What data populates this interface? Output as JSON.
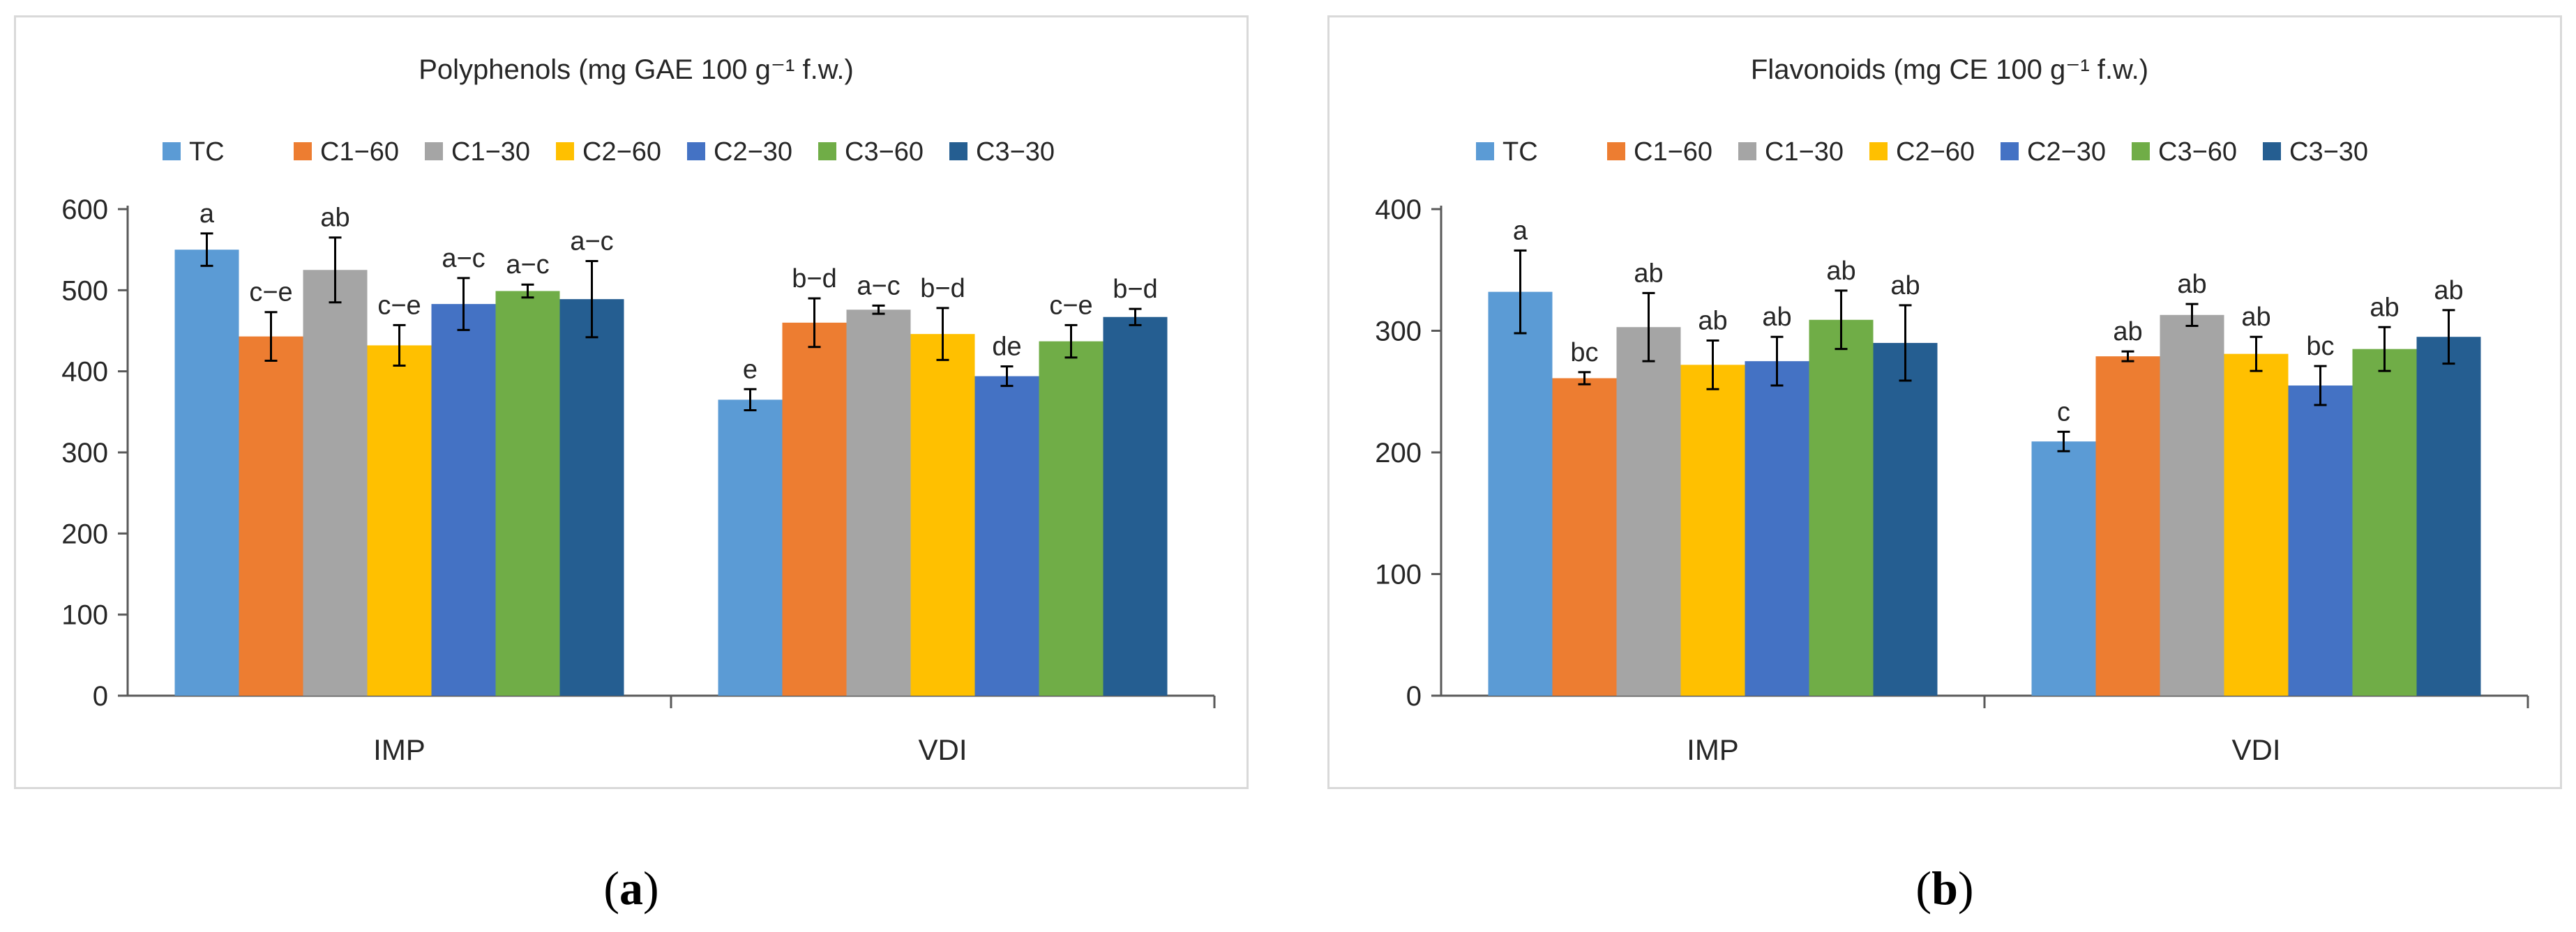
{
  "chart_data": [
    {
      "type": "bar",
      "title": "Polyphenols (mg GAE 100 g⁻¹ f.w.)",
      "categories": [
        "IMP",
        "VDI"
      ],
      "xlabel": "",
      "ylabel": "",
      "ylim": [
        0,
        600
      ],
      "yticks": [
        0,
        100,
        200,
        300,
        400,
        500,
        600
      ],
      "legend_position": "top",
      "series": [
        {
          "name": "TC",
          "color": "#5b9bd5",
          "values": [
            550,
            365
          ],
          "errors": [
            20,
            13
          ],
          "letters": [
            "a",
            "e"
          ]
        },
        {
          "name": "C1−60",
          "color": "#ed7d31",
          "values": [
            443,
            460
          ],
          "errors": [
            30,
            30
          ],
          "letters": [
            "c−e",
            "b−d"
          ]
        },
        {
          "name": "C1−30",
          "color": "#a5a5a5",
          "values": [
            525,
            476
          ],
          "errors": [
            40,
            5
          ],
          "letters": [
            "ab",
            "a−c"
          ]
        },
        {
          "name": "C2−60",
          "color": "#ffc000",
          "values": [
            432,
            446
          ],
          "errors": [
            25,
            32
          ],
          "letters": [
            "c−e",
            "b−d"
          ]
        },
        {
          "name": "C2−30",
          "color": "#4472c4",
          "values": [
            483,
            394
          ],
          "errors": [
            32,
            12
          ],
          "letters": [
            "a−c",
            "de"
          ]
        },
        {
          "name": "C3−60",
          "color": "#70ad47",
          "values": [
            499,
            437
          ],
          "errors": [
            8,
            20
          ],
          "letters": [
            "a−c",
            "c−e"
          ]
        },
        {
          "name": "C3−30",
          "color": "#255e91",
          "values": [
            489,
            467
          ],
          "errors": [
            47,
            10
          ],
          "letters": [
            "a−c",
            "b−d"
          ]
        }
      ]
    },
    {
      "type": "bar",
      "title": "Flavonoids (mg CE 100 g⁻¹ f.w.)",
      "categories": [
        "IMP",
        "VDI"
      ],
      "xlabel": "",
      "ylabel": "",
      "ylim": [
        0,
        400
      ],
      "yticks": [
        0,
        100,
        200,
        300,
        400
      ],
      "legend_position": "top",
      "series": [
        {
          "name": "TC",
          "color": "#5b9bd5",
          "values": [
            332,
            209
          ],
          "errors": [
            34,
            8
          ],
          "letters": [
            "a",
            "c"
          ]
        },
        {
          "name": "C1−60",
          "color": "#ed7d31",
          "values": [
            261,
            279
          ],
          "errors": [
            5,
            4
          ],
          "letters": [
            "bc",
            "ab"
          ]
        },
        {
          "name": "C1−30",
          "color": "#a5a5a5",
          "values": [
            303,
            313
          ],
          "errors": [
            28,
            9
          ],
          "letters": [
            "ab",
            "ab"
          ]
        },
        {
          "name": "C2−60",
          "color": "#ffc000",
          "values": [
            272,
            281
          ],
          "errors": [
            20,
            14
          ],
          "letters": [
            "ab",
            "ab"
          ]
        },
        {
          "name": "C2−30",
          "color": "#4472c4",
          "values": [
            275,
            255
          ],
          "errors": [
            20,
            16
          ],
          "letters": [
            "ab",
            "bc"
          ]
        },
        {
          "name": "C3−60",
          "color": "#70ad47",
          "values": [
            309,
            285
          ],
          "errors": [
            24,
            18
          ],
          "letters": [
            "ab",
            "ab"
          ]
        },
        {
          "name": "C3−30",
          "color": "#255e91",
          "values": [
            290,
            295
          ],
          "errors": [
            31,
            22
          ],
          "letters": [
            "ab",
            "ab"
          ]
        }
      ]
    }
  ],
  "panel_labels": [
    "a",
    "b"
  ]
}
